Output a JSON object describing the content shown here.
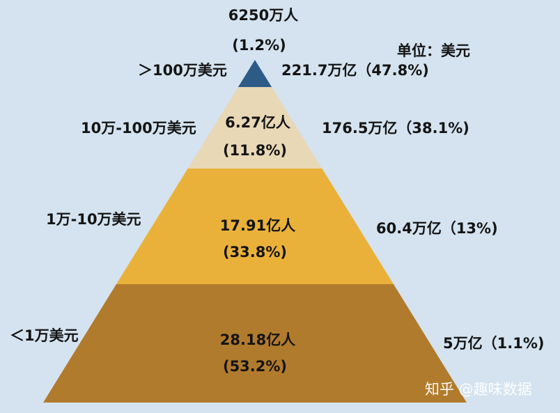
{
  "unit_label": "单位：美元",
  "watermark": "知乎 @趣味数据",
  "chart_data": {
    "type": "pyramid",
    "title": "",
    "unit": "单位：美元",
    "tiers": [
      {
        "wealth_bracket": "＞100万美元",
        "population": "6250万人",
        "population_share": "(1.2%)",
        "population_share_pct": 1.2,
        "wealth": "221.7万亿（47.8%)",
        "wealth_share_pct": 47.8,
        "color": "#2e5b86"
      },
      {
        "wealth_bracket": "10万-100万美元",
        "population": "6.27亿人",
        "population_share": "(11.8%)",
        "population_share_pct": 11.8,
        "wealth": "176.5万亿（38.1%)",
        "wealth_share_pct": 38.1,
        "color": "#e8d8b5"
      },
      {
        "wealth_bracket": "1万-10万美元",
        "population": "17.91亿人",
        "population_share": "(33.8%)",
        "population_share_pct": 33.8,
        "wealth": "60.4万亿（13%)",
        "wealth_share_pct": 13,
        "color": "#eab13a"
      },
      {
        "wealth_bracket": "＜1万美元",
        "population": "28.18亿人",
        "population_share": "(53.2%)",
        "population_share_pct": 53.2,
        "wealth": "5万亿（1.1%)",
        "wealth_share_pct": 1.1,
        "color": "#b17b2d"
      }
    ]
  }
}
